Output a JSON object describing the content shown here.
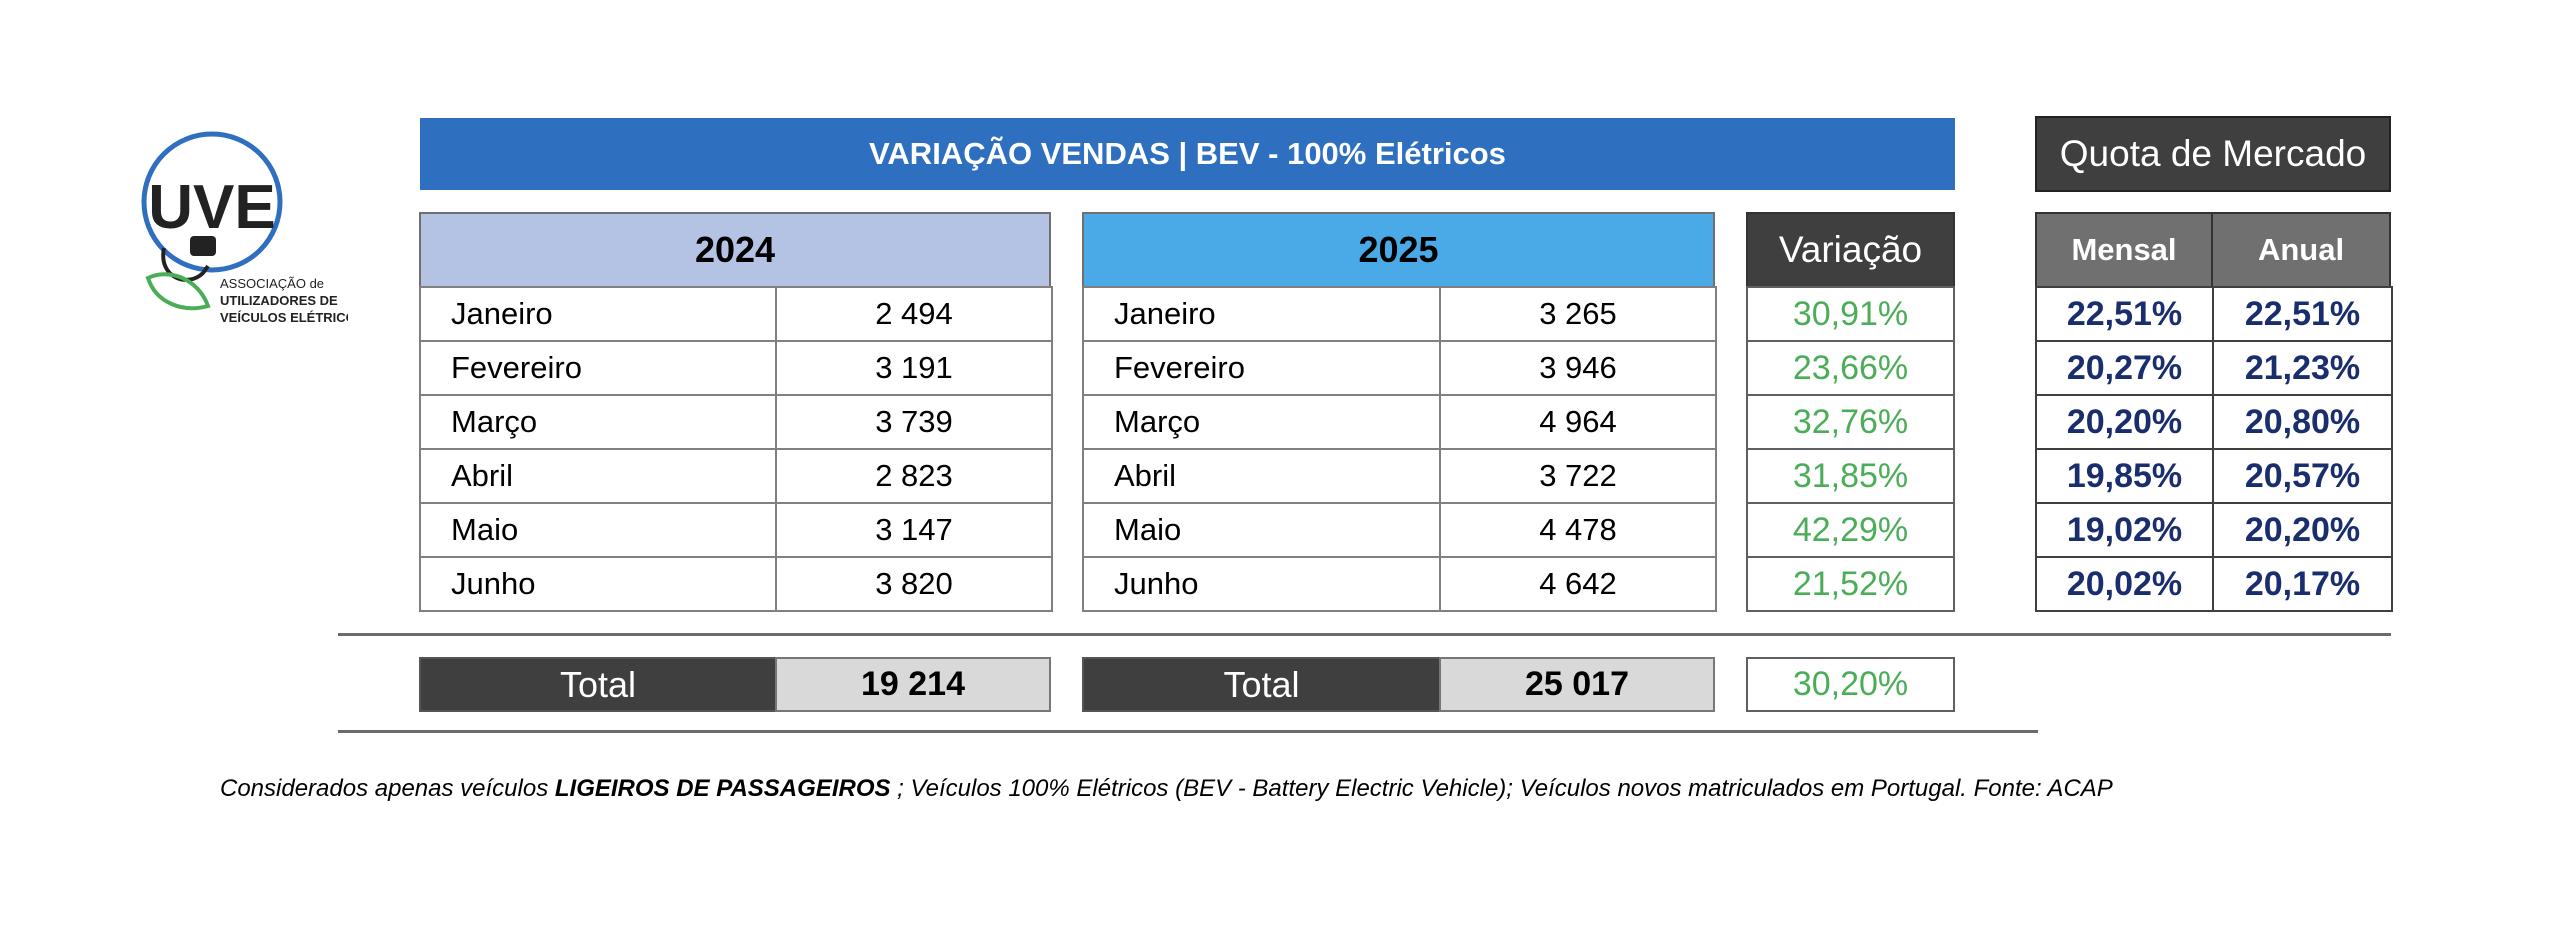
{
  "logo": {
    "initials": "UVE",
    "line1": "ASSOCIAÇÃO de",
    "line2": "UTILIZADORES DE",
    "line3": "VEÍCULOS ELÉTRICOS"
  },
  "banner_title": "VARIAÇÃO VENDAS | BEV - 100% Elétricos",
  "quota_title": "Quota de Mercado",
  "year_2024": {
    "header": "2024",
    "rows": [
      {
        "month": "Janeiro",
        "value": "2 494"
      },
      {
        "month": "Fevereiro",
        "value": "3 191"
      },
      {
        "month": "Março",
        "value": "3 739"
      },
      {
        "month": "Abril",
        "value": "2 823"
      },
      {
        "month": "Maio",
        "value": "3 147"
      },
      {
        "month": "Junho",
        "value": "3 820"
      }
    ],
    "total_label": "Total",
    "total_value": "19 214"
  },
  "year_2025": {
    "header": "2025",
    "rows": [
      {
        "month": "Janeiro",
        "value": "3 265"
      },
      {
        "month": "Fevereiro",
        "value": "3 946"
      },
      {
        "month": "Março",
        "value": "4 964"
      },
      {
        "month": "Abril",
        "value": "3 722"
      },
      {
        "month": "Maio",
        "value": "4 478"
      },
      {
        "month": "Junho",
        "value": "4 642"
      }
    ],
    "total_label": "Total",
    "total_value": "25 017"
  },
  "variation": {
    "header": "Variação",
    "rows": [
      "30,91%",
      "23,66%",
      "32,76%",
      "31,85%",
      "42,29%",
      "21,52%"
    ],
    "total": "30,20%"
  },
  "market_share": {
    "header_monthly": "Mensal",
    "header_annual": "Anual",
    "rows": [
      {
        "monthly": "22,51%",
        "annual": "22,51%"
      },
      {
        "monthly": "20,27%",
        "annual": "21,23%"
      },
      {
        "monthly": "20,20%",
        "annual": "20,80%"
      },
      {
        "monthly": "19,85%",
        "annual": "20,57%"
      },
      {
        "monthly": "19,02%",
        "annual": "20,20%"
      },
      {
        "monthly": "20,02%",
        "annual": "20,17%"
      }
    ]
  },
  "footnote": {
    "part1": "Considerados apenas veículos ",
    "bold": "LIGEIROS DE PASSAGEIROS",
    "part2": " ; Veículos 100% Elétricos (BEV - Battery Electric Vehicle); Veículos novos matriculados em Portugal. Fonte: ACAP"
  },
  "colors": {
    "banner": "#2f6fc0",
    "header_2024": "#b4c3e4",
    "header_2025": "#4aaae8",
    "dark_header": "#3f3f3f",
    "variation_text": "#4cad58",
    "share_text": "#1a2e6e"
  }
}
